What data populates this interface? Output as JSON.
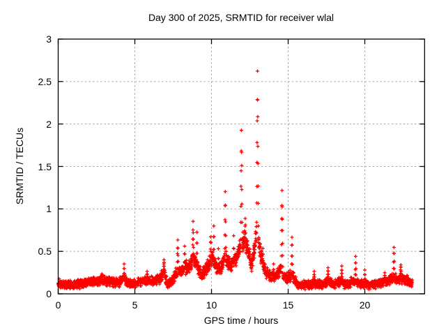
{
  "window": {
    "background": "#ffffff"
  },
  "chart_data": {
    "type": "scatter",
    "title": "Day 300 of 2025, SRMTID for receiver wlal",
    "xlabel": "GPS time / hours",
    "ylabel": "SRMTID / TECUs",
    "xlim": [
      0,
      23.9
    ],
    "ylim": [
      0,
      3
    ],
    "xticks": [
      0,
      5,
      10,
      15,
      20
    ],
    "xtick_labels": [
      "0",
      "5",
      "10",
      "15",
      "20"
    ],
    "yticks": [
      0,
      0.5,
      1,
      1.5,
      2,
      2.5,
      3
    ],
    "ytick_labels": [
      "0",
      "0.5",
      "1",
      "1.5",
      "2",
      "2.5",
      "3"
    ],
    "grid": true,
    "legend": "none",
    "marker": "plus",
    "marker_color": "#ff0000",
    "grid_color": "#a8a8a8",
    "axis_color": "#000000",
    "time_range_hours": [
      0,
      23.1
    ],
    "points_per_hour": 120,
    "scatter_model": {
      "base_spread": 0.026,
      "level_spread_factor": 0.1,
      "min_value": 0.015
    },
    "baseline_profile": [
      [
        0,
        0.12
      ],
      [
        0.5,
        0.11
      ],
      [
        1,
        0.11
      ],
      [
        1.5,
        0.12
      ],
      [
        2,
        0.13
      ],
      [
        2.4,
        0.15
      ],
      [
        2.8,
        0.16
      ],
      [
        3.2,
        0.15
      ],
      [
        3.6,
        0.13
      ],
      [
        4,
        0.14
      ],
      [
        4.3,
        0.17
      ],
      [
        4.6,
        0.12
      ],
      [
        5,
        0.12
      ],
      [
        5.4,
        0.14
      ],
      [
        5.8,
        0.16
      ],
      [
        6.2,
        0.15
      ],
      [
        6.6,
        0.18
      ],
      [
        6.9,
        0.24
      ],
      [
        7.15,
        0.11
      ],
      [
        7.4,
        0.14
      ],
      [
        7.7,
        0.24
      ],
      [
        8,
        0.27
      ],
      [
        8.3,
        0.3
      ],
      [
        8.6,
        0.33
      ],
      [
        8.85,
        0.42
      ],
      [
        9.1,
        0.32
      ],
      [
        9.35,
        0.22
      ],
      [
        9.6,
        0.27
      ],
      [
        9.9,
        0.38
      ],
      [
        10.1,
        0.42
      ],
      [
        10.35,
        0.28
      ],
      [
        10.6,
        0.3
      ],
      [
        10.85,
        0.45
      ],
      [
        11.05,
        0.38
      ],
      [
        11.25,
        0.32
      ],
      [
        11.5,
        0.38
      ],
      [
        11.75,
        0.48
      ],
      [
        11.95,
        0.6
      ],
      [
        12.15,
        0.62
      ],
      [
        12.35,
        0.55
      ],
      [
        12.6,
        0.33
      ],
      [
        12.8,
        0.5
      ],
      [
        12.95,
        0.75
      ],
      [
        13.1,
        0.6
      ],
      [
        13.3,
        0.38
      ],
      [
        13.6,
        0.25
      ],
      [
        13.9,
        0.2
      ],
      [
        14.2,
        0.22
      ],
      [
        14.5,
        0.3
      ],
      [
        14.75,
        0.18
      ],
      [
        15,
        0.2
      ],
      [
        15.3,
        0.22
      ],
      [
        15.6,
        0.11
      ],
      [
        16,
        0.1
      ],
      [
        16.4,
        0.11
      ],
      [
        16.8,
        0.12
      ],
      [
        17.2,
        0.11
      ],
      [
        17.6,
        0.14
      ],
      [
        18,
        0.12
      ],
      [
        18.4,
        0.14
      ],
      [
        18.8,
        0.11
      ],
      [
        19.2,
        0.14
      ],
      [
        19.5,
        0.13
      ],
      [
        19.9,
        0.12
      ],
      [
        20.3,
        0.1
      ],
      [
        20.7,
        0.11
      ],
      [
        21.1,
        0.14
      ],
      [
        21.5,
        0.15
      ],
      [
        21.9,
        0.2
      ],
      [
        22.2,
        0.17
      ],
      [
        22.5,
        0.17
      ],
      [
        22.8,
        0.15
      ],
      [
        23.1,
        0.13
      ]
    ],
    "peaks": [
      [
        2.85,
        0.24,
        0.1
      ],
      [
        4.3,
        0.35,
        0.06
      ],
      [
        5.8,
        0.26,
        0.08
      ],
      [
        6.9,
        0.4,
        0.1
      ],
      [
        7.8,
        0.64,
        0.07
      ],
      [
        8.25,
        0.55,
        0.06
      ],
      [
        8.8,
        0.83,
        0.09
      ],
      [
        9.05,
        0.72,
        0.06
      ],
      [
        9.95,
        0.68,
        0.08
      ],
      [
        10.15,
        0.79,
        0.06
      ],
      [
        10.45,
        0.52,
        0.05
      ],
      [
        10.9,
        1.18,
        0.07
      ],
      [
        11.45,
        0.67,
        0.05
      ],
      [
        11.95,
        1.92,
        0.085
      ],
      [
        12.2,
        0.9,
        0.1
      ],
      [
        13.0,
        2.57,
        0.095
      ],
      [
        13.35,
        0.55,
        0.06
      ],
      [
        14.05,
        0.35,
        0.06
      ],
      [
        14.6,
        1.2,
        0.075
      ],
      [
        15.25,
        0.67,
        0.06
      ],
      [
        16.7,
        0.26,
        0.08
      ],
      [
        17.6,
        0.31,
        0.08
      ],
      [
        18.5,
        0.32,
        0.08
      ],
      [
        19.4,
        0.43,
        0.06
      ],
      [
        20.0,
        0.28,
        0.05
      ],
      [
        21.3,
        0.25,
        0.08
      ],
      [
        21.9,
        0.56,
        0.06
      ],
      [
        22.35,
        0.35,
        0.09
      ]
    ]
  }
}
